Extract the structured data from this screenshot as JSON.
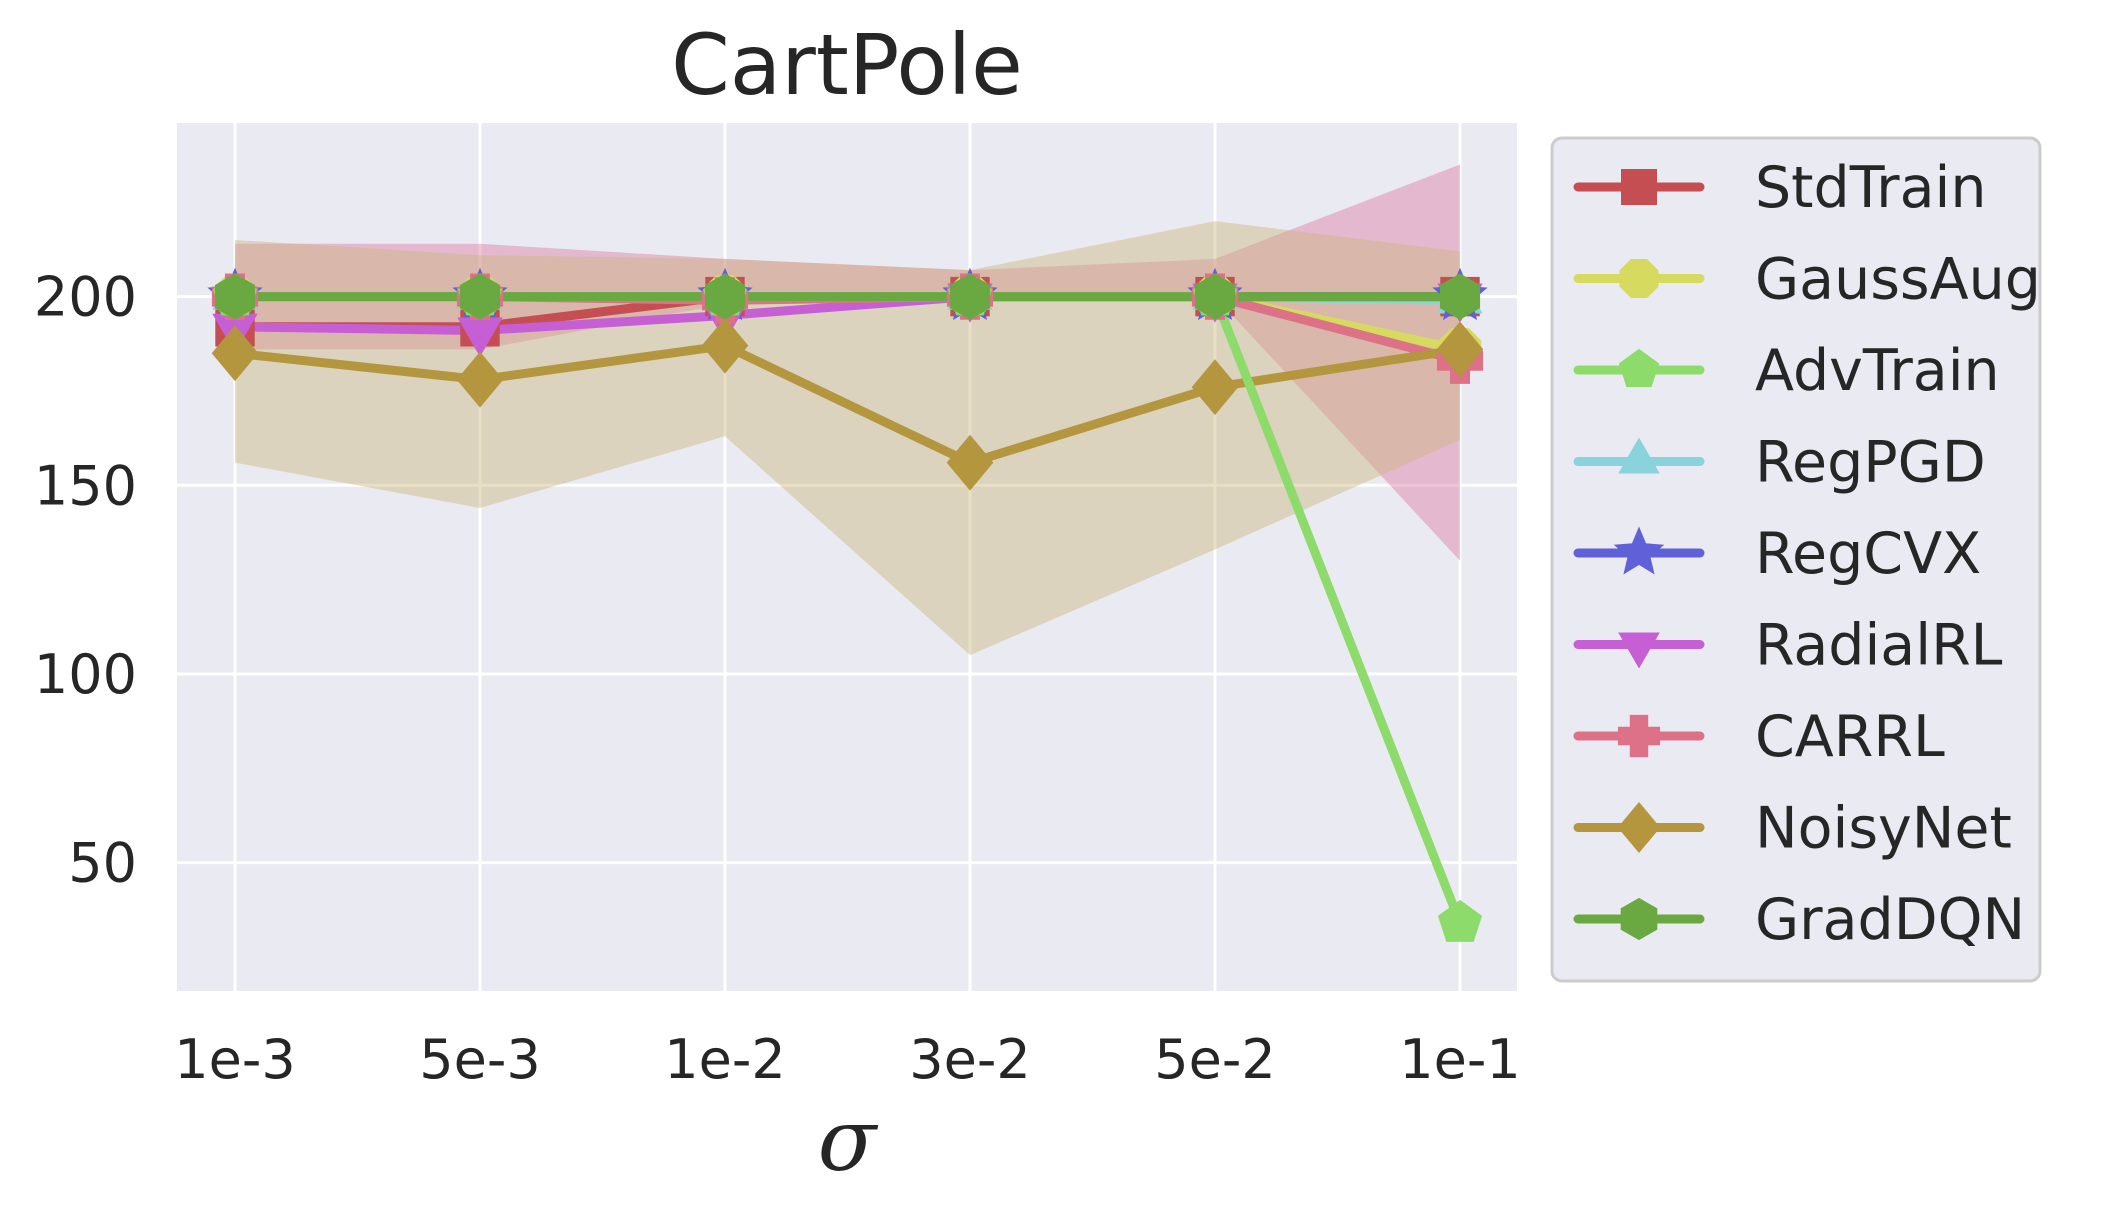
{
  "chart_data": {
    "type": "line",
    "title": "CartPole",
    "xlabel": "σ",
    "ylabel": "",
    "categories": [
      "1e-3",
      "5e-3",
      "1e-2",
      "3e-2",
      "5e-2",
      "1e-1"
    ],
    "ylim": [
      16,
      246
    ],
    "yticks": [
      50,
      100,
      150,
      200
    ],
    "grid": true,
    "background": "#eaeaf2",
    "legend": {
      "position": "outside-right"
    },
    "series": [
      {
        "name": "StdTrain",
        "color": "#c44e52",
        "marker": "square",
        "values": [
          192,
          192,
          200,
          200,
          200,
          200
        ],
        "band": null
      },
      {
        "name": "GaussAug",
        "color": "#d6db5f",
        "marker": "octagon",
        "values": [
          200,
          200,
          200,
          200,
          200,
          186
        ],
        "band": null
      },
      {
        "name": "AdvTrain",
        "color": "#8ddb6a",
        "marker": "pentagon",
        "values": [
          200,
          200,
          200,
          200,
          200,
          34
        ],
        "band": null
      },
      {
        "name": "RegPGD",
        "color": "#8ad2dc",
        "marker": "triangle-up",
        "values": [
          200,
          200,
          200,
          200,
          200,
          199
        ],
        "band": null
      },
      {
        "name": "RegCVX",
        "color": "#6061d8",
        "marker": "star",
        "values": [
          200,
          200,
          200,
          200,
          200,
          200
        ],
        "band": null
      },
      {
        "name": "RadialRL",
        "color": "#c65fd4",
        "marker": "triangle-down",
        "values": [
          192,
          191,
          195,
          200,
          200,
          200
        ],
        "band": null
      },
      {
        "name": "CARRL",
        "color": "#dd7187",
        "marker": "x",
        "values": [
          200,
          200,
          199,
          200,
          200,
          183
        ],
        "band": {
          "lower": [
            186,
            186,
            198,
            200,
            200,
            130
          ],
          "upper": [
            214,
            214,
            210,
            207,
            210,
            235
          ],
          "color": "#dd7fa3"
        }
      },
      {
        "name": "NoisyNet",
        "color": "#b3963e",
        "marker": "diamond",
        "values": [
          185,
          178,
          187,
          156,
          176,
          186
        ],
        "band": {
          "lower": [
            156,
            144,
            163,
            105,
            133,
            162
          ],
          "upper": [
            215,
            211,
            210,
            207,
            220,
            212
          ],
          "color": "#cbb87f"
        }
      },
      {
        "name": "GradDQN",
        "color": "#6aa941",
        "marker": "hexagon",
        "values": [
          200,
          200,
          200,
          200,
          200,
          200
        ],
        "band": null
      }
    ]
  }
}
